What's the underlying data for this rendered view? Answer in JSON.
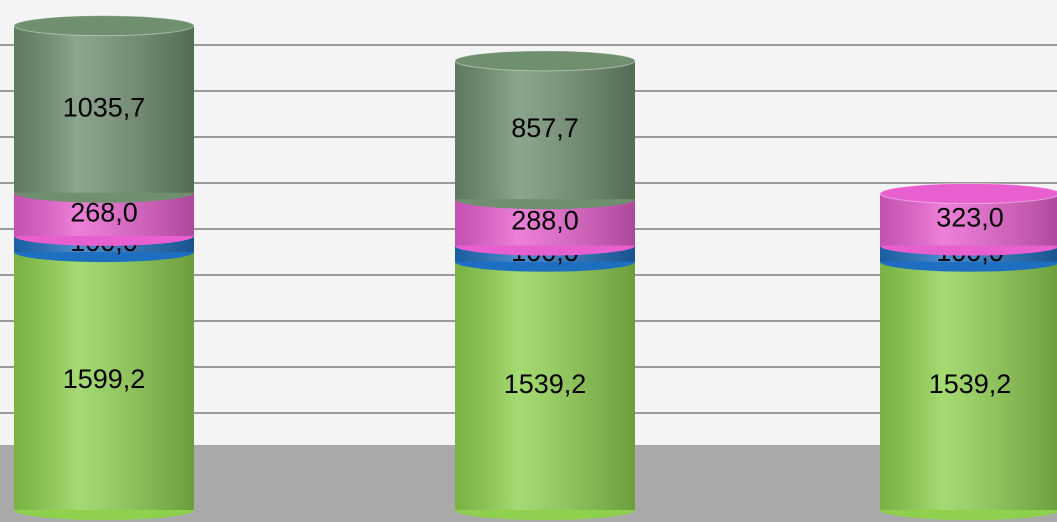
{
  "chart_data": {
    "type": "bar",
    "stacked": true,
    "series": [
      {
        "color": "#8fd14f",
        "values": [
          1599.2,
          1539.2,
          1539.2
        ],
        "value_labels": [
          "1599,2",
          "1539,2",
          "1539,2"
        ]
      },
      {
        "color": "#1f6fc0",
        "values": [
          100,
          100,
          100
        ],
        "value_labels": [
          "100,0",
          "100,0",
          "100,0"
        ]
      },
      {
        "color": "#e860cf",
        "values": [
          268,
          288,
          323
        ],
        "value_labels": [
          "268,0",
          "288,0",
          "323,0"
        ]
      },
      {
        "color": "#6f8f6f",
        "values": [
          1035.7,
          857.7,
          null
        ],
        "value_labels": [
          "1035,7",
          "857,7",
          null
        ]
      }
    ],
    "ylim": [
      0,
      3100
    ]
  }
}
